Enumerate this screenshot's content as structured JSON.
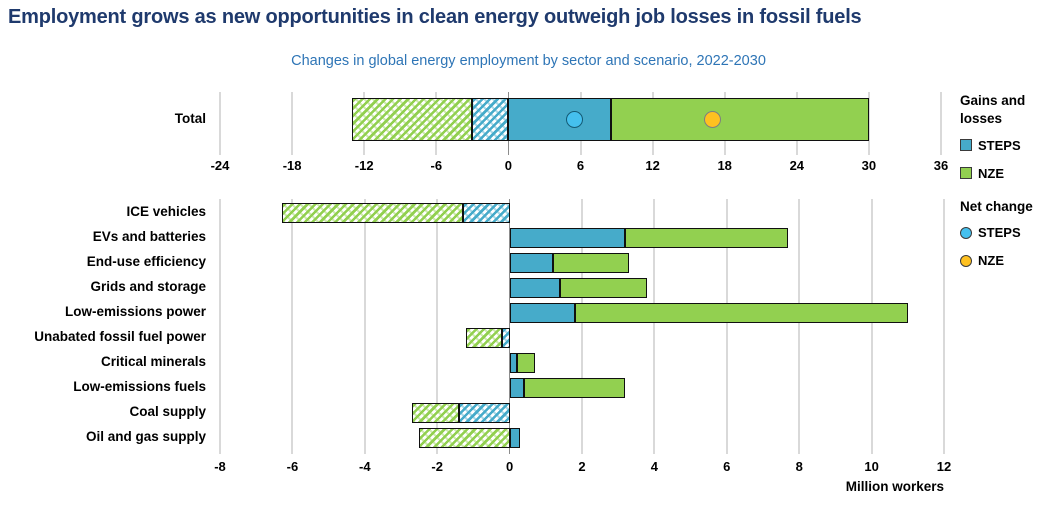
{
  "title": "Employment grows as new opportunities in clean energy outweigh job losses in fossil fuels",
  "subtitle": "Changes in global energy employment by sector and scenario, 2022-2030",
  "colors": {
    "gains_steps": "#46abca",
    "gains_nze": "#92d050",
    "net_steps": "#45c0ee",
    "net_nze": "#ffc120",
    "title": "#1f3a6d",
    "subtitle": "#2e75b6"
  },
  "legend": {
    "gains_heading": "Gains and losses",
    "gains_items": [
      {
        "label": "STEPS",
        "swatch": "gains_steps"
      },
      {
        "label": "NZE",
        "swatch": "gains_nze"
      }
    ],
    "net_heading": "Net change",
    "net_items": [
      {
        "label": "STEPS",
        "swatch": "net_steps"
      },
      {
        "label": "NZE",
        "swatch": "net_nze"
      }
    ]
  },
  "chart_data": [
    {
      "type": "bar",
      "name": "total",
      "orientation": "horizontal",
      "units": "million workers",
      "xlim": [
        -24,
        36
      ],
      "xticks": [
        -24,
        -18,
        -12,
        -6,
        0,
        6,
        12,
        18,
        24,
        30,
        36
      ],
      "grid": true,
      "rows": [
        {
          "label": "Total",
          "loss_nze": -13,
          "loss_steps": -3,
          "gain_steps": 8.5,
          "gain_nze": 30,
          "net_steps": 5.5,
          "net_nze": 17
        }
      ]
    },
    {
      "type": "bar",
      "name": "sectors",
      "orientation": "horizontal",
      "units": "million workers",
      "xlabel": "Million workers",
      "xlim": [
        -8,
        12
      ],
      "xticks": [
        -8,
        -6,
        -4,
        -2,
        0,
        2,
        4,
        6,
        8,
        10,
        12
      ],
      "grid": true,
      "rows": [
        {
          "label": "ICE vehicles",
          "loss_nze": -6.3,
          "loss_steps": -1.3
        },
        {
          "label": "EVs and batteries",
          "gain_steps": 3.2,
          "gain_nze": 7.7
        },
        {
          "label": "End-use efficiency",
          "gain_steps": 1.2,
          "gain_nze": 3.3
        },
        {
          "label": "Grids and storage",
          "gain_steps": 1.4,
          "gain_nze": 3.8
        },
        {
          "label": "Low-emissions power",
          "gain_steps": 1.8,
          "gain_nze": 11
        },
        {
          "label": "Unabated fossil fuel power",
          "loss_nze": -1.2,
          "loss_steps": -0.2
        },
        {
          "label": "Critical minerals",
          "gain_steps": 0.2,
          "gain_nze": 0.7
        },
        {
          "label": "Low-emissions fuels",
          "gain_steps": 0.4,
          "gain_nze": 3.2
        },
        {
          "label": "Coal supply",
          "loss_nze": -2.7,
          "loss_steps": -1.4
        },
        {
          "label": "Oil and gas supply",
          "loss_nze": -2.5,
          "gain_steps": 0.3
        }
      ]
    }
  ]
}
